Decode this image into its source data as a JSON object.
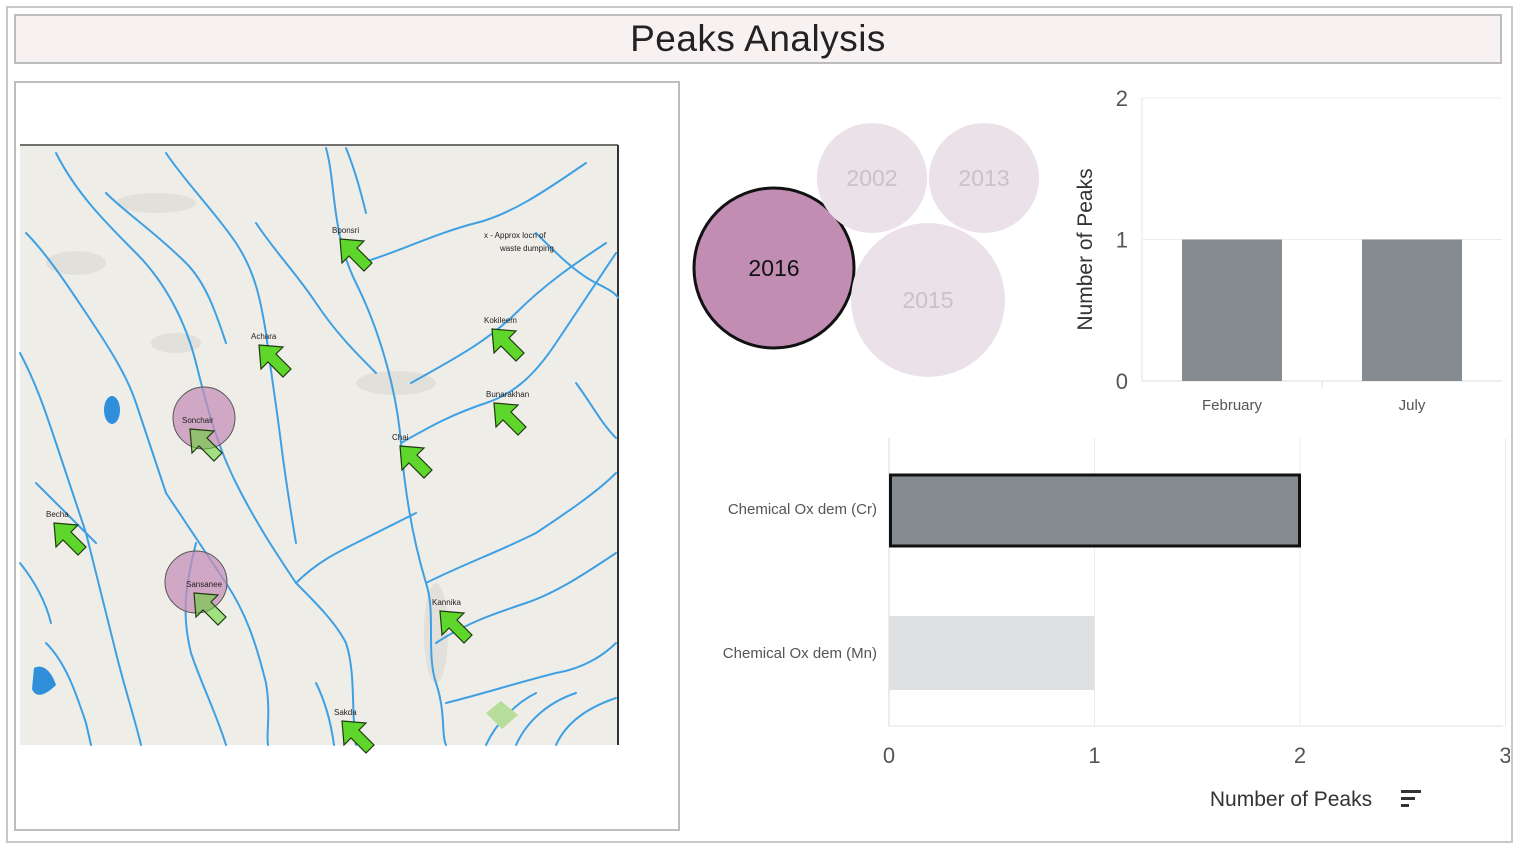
{
  "header": {
    "title": "Peaks Analysis"
  },
  "map": {
    "annotation_line1": "x - Approx locn of",
    "annotation_line2": "waste dumping",
    "places": [
      {
        "name": "Bponsri",
        "highlighted": false
      },
      {
        "name": "Achara",
        "highlighted": false
      },
      {
        "name": "Kokileem",
        "highlighted": false
      },
      {
        "name": "Sonchair",
        "highlighted": true
      },
      {
        "name": "Bunarakhan",
        "highlighted": false
      },
      {
        "name": "Chai",
        "highlighted": false
      },
      {
        "name": "Becha",
        "highlighted": false
      },
      {
        "name": "Sansanee",
        "highlighted": true
      },
      {
        "name": "Kannika",
        "highlighted": false
      },
      {
        "name": "Sakda",
        "highlighted": false
      }
    ],
    "colors": {
      "land": "#efede8",
      "river": "#3ea0e4",
      "arrow": "#5fd62b",
      "highlight": "#c58fb8"
    }
  },
  "chart_data": [
    {
      "type": "bubble",
      "title": "",
      "items": [
        {
          "label": "2016",
          "selected": true
        },
        {
          "label": "2002",
          "selected": false
        },
        {
          "label": "2013",
          "selected": false
        },
        {
          "label": "2015",
          "selected": false
        }
      ],
      "colors": {
        "selected": "#c18db3",
        "unselected": "#ebe1e8",
        "unselected_text": "#c9c2c8"
      }
    },
    {
      "type": "bar",
      "orientation": "vertical",
      "categories": [
        "February",
        "July"
      ],
      "values": [
        1,
        1
      ],
      "xlabel": "",
      "ylabel": "Number of Peaks",
      "ylim": [
        0,
        2
      ],
      "yticks": [
        0,
        1,
        2
      ],
      "grid": true,
      "color": "#848b91"
    },
    {
      "type": "bar",
      "orientation": "horizontal",
      "categories": [
        "Chemical Ox dem (Cr)",
        "Chemical Ox dem (Mn)"
      ],
      "values": [
        2,
        1
      ],
      "selected": [
        true,
        false
      ],
      "xlabel": "Number of Peaks",
      "ylabel": "",
      "xlim": [
        0,
        3
      ],
      "xticks": [
        0,
        1,
        2,
        3
      ],
      "grid": true,
      "colors": {
        "selected": "#848b91",
        "unselected": "#dfe0e1"
      }
    }
  ]
}
